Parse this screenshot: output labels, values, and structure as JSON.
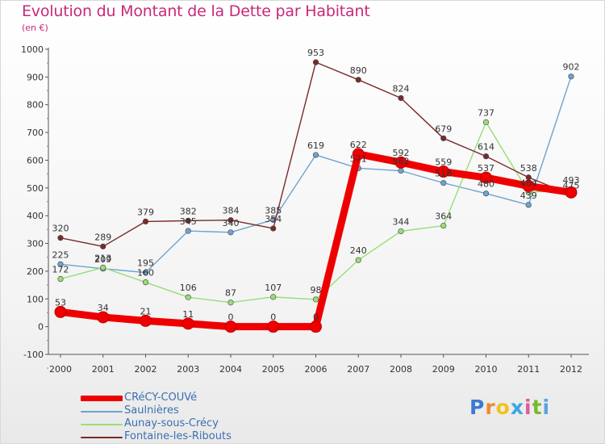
{
  "title": "Evolution du Montant de la Dette par Habitant",
  "subtitle": "(en €)",
  "brand": {
    "text": "Proxiti"
  },
  "chart_data": {
    "type": "line",
    "title": "Evolution du Montant de la Dette par Habitant",
    "ylabel": "(en €)",
    "categories": [
      "2000",
      "2001",
      "2002",
      "2003",
      "2004",
      "2005",
      "2006",
      "2007",
      "2008",
      "2009",
      "2010",
      "2011",
      "2012"
    ],
    "y_ticks": [
      1000,
      900,
      800,
      700,
      600,
      500,
      400,
      300,
      200,
      100,
      0,
      -100
    ],
    "ylim": [
      -100,
      1000
    ],
    "grid": false,
    "series": [
      {
        "name": "CRéCY-COUVé",
        "color": "#ee0000",
        "values": [
          53,
          34,
          21,
          11,
          0,
          0,
          0,
          622,
          592,
          559,
          537,
          507,
          484
        ],
        "labels": [
          "53",
          "34",
          "21",
          "11",
          "0",
          "0",
          "0",
          "622",
          "592",
          "559",
          "537",
          "",
          ""
        ]
      },
      {
        "name": "Saulnières",
        "color": "#6fa3cf",
        "values": [
          225,
          209,
          195,
          345,
          340,
          385,
          619,
          571,
          562,
          518,
          480,
          439,
          902
        ],
        "labels": [
          "225",
          "209",
          "195",
          "345",
          "340",
          "385",
          "619",
          "571",
          "562",
          "518",
          "480",
          "439",
          "902"
        ]
      },
      {
        "name": "Aunay-sous-Crécy",
        "color": "#99dd77",
        "values": [
          172,
          213,
          160,
          106,
          87,
          107,
          98,
          240,
          344,
          364,
          737,
          484,
          493
        ],
        "labels": [
          "172",
          "213",
          "160",
          "106",
          "87",
          "107",
          "98",
          "240",
          "344",
          "364",
          "737",
          "484",
          "493"
        ]
      },
      {
        "name": "Fontaine-les-Ribouts",
        "color": "#7a2a2a",
        "values": [
          320,
          289,
          379,
          382,
          384,
          354,
          953,
          890,
          824,
          679,
          614,
          538,
          475
        ],
        "labels": [
          "320",
          "289",
          "379",
          "382",
          "384",
          "354",
          "953",
          "890",
          "824",
          "679",
          "614",
          "538",
          "475"
        ]
      }
    ]
  }
}
